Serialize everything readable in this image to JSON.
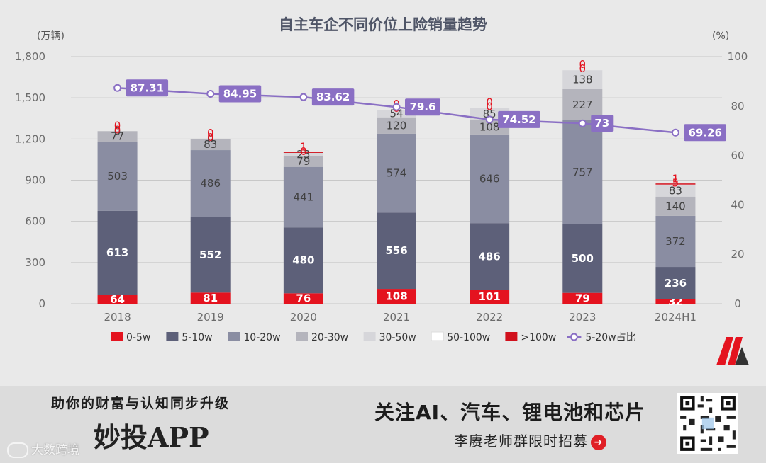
{
  "chart_data": {
    "type": "bar",
    "title": "自主车企不同价位上险销量趋势",
    "left_unit": "(万辆)",
    "right_unit": "(%)",
    "categories": [
      "2018",
      "2019",
      "2020",
      "2021",
      "2022",
      "2023",
      "2024H1"
    ],
    "ylim": [
      0,
      1800
    ],
    "y_ticks": [
      "0",
      "300",
      "600",
      "900",
      "1,200",
      "1,500",
      "1,800"
    ],
    "y2lim": [
      0,
      100
    ],
    "y2_ticks": [
      "0",
      "20",
      "40",
      "60",
      "80",
      "100"
    ],
    "series": [
      {
        "name": "0-5w",
        "values": [
          64,
          81,
          76,
          108,
          101,
          79,
          32
        ],
        "color": "#e4131f",
        "label_color": "#ffffff"
      },
      {
        "name": "5-10w",
        "values": [
          613,
          552,
          480,
          556,
          486,
          500,
          236
        ],
        "color": "#5d6079",
        "label_color": "#ffffff"
      },
      {
        "name": "10-20w",
        "values": [
          503,
          486,
          441,
          574,
          646,
          757,
          372
        ],
        "color": "#8a8da2",
        "label_color": "#404040"
      },
      {
        "name": "20-30w",
        "values": [
          77,
          83,
          79,
          120,
          108,
          227,
          140
        ],
        "color": "#b4b4bc",
        "label_color": "#404040"
      },
      {
        "name": "30-50w",
        "values": [
          0,
          0,
          23,
          54,
          85,
          138,
          83
        ],
        "color": "#d6d6da",
        "label_color": "#404040"
      },
      {
        "name": "50-100w",
        "values": [
          0,
          0,
          0,
          0,
          0,
          0,
          5
        ],
        "color": "#ffffff",
        "label_color": "#e4131f"
      },
      {
        "name": ">100w",
        "values": [
          0,
          0,
          1,
          0,
          0,
          0,
          1
        ],
        "color": "#d1101c",
        "label_color": "#e4131f"
      }
    ],
    "line_series": {
      "name": "5-20w占比",
      "values": [
        87.31,
        84.95,
        83.62,
        79.6,
        74.52,
        73,
        69.26
      ],
      "color": "#8a6fc4"
    },
    "legend_position": "bottom",
    "grid": true
  },
  "brand": {
    "logo": "M-logo",
    "colors": [
      "#e4131f",
      "#3a3a3a"
    ]
  },
  "banner": {
    "slogan": "助你的财富与认知同步升级",
    "app_name": "妙投APP",
    "watermark": "大数跨境",
    "topic": "关注AI、汽车、锂电池和芯片",
    "recruit": "李赓老师群限时招募",
    "arrow_icon": "➔"
  }
}
